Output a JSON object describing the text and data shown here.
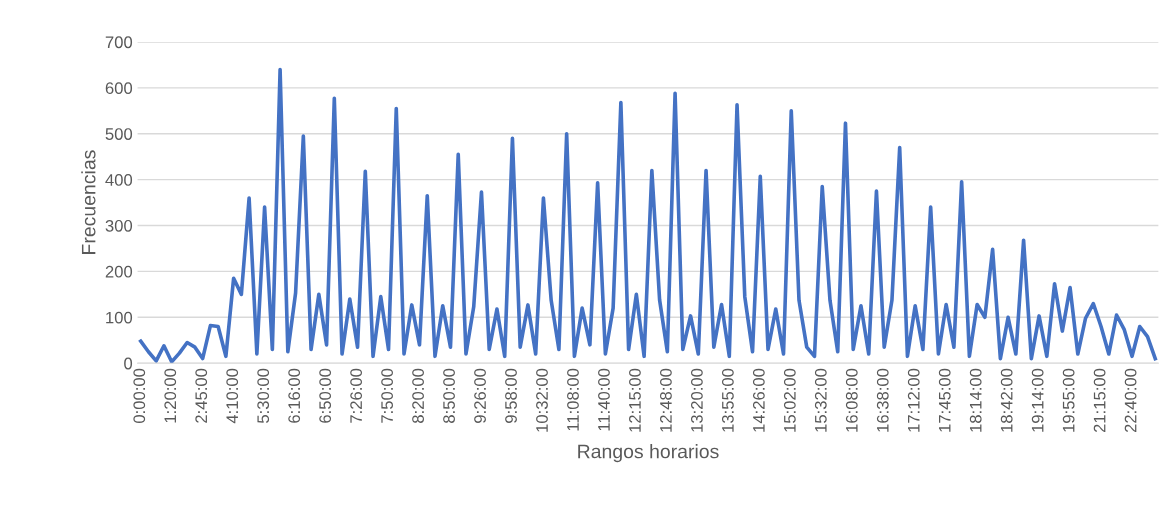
{
  "chart_data": {
    "type": "line",
    "xlabel": "Rangos horarios",
    "ylabel": "Frecuencias",
    "categories": [
      "0:00:00",
      null,
      null,
      null,
      "1:20:00",
      null,
      null,
      null,
      "2:45:00",
      null,
      null,
      null,
      "4:10:00",
      null,
      null,
      null,
      "5:30:00",
      null,
      null,
      null,
      "6:16:00",
      null,
      null,
      null,
      "6:50:00",
      null,
      null,
      null,
      "7:26:00",
      null,
      null,
      null,
      "7:50:00",
      null,
      null,
      null,
      "8:20:00",
      null,
      null,
      null,
      "8:50:00",
      null,
      null,
      null,
      "9:26:00",
      null,
      null,
      null,
      "9:58:00",
      null,
      null,
      null,
      "10:32:00",
      null,
      null,
      null,
      "11:08:00",
      null,
      null,
      null,
      "11:40:00",
      null,
      null,
      null,
      "12:15:00",
      null,
      null,
      null,
      "12:48:00",
      null,
      null,
      null,
      "13:20:00",
      null,
      null,
      null,
      "13:55:00",
      null,
      null,
      null,
      "14:26:00",
      null,
      null,
      null,
      "15:02:00",
      null,
      null,
      null,
      "15:32:00",
      null,
      null,
      null,
      "16:08:00",
      null,
      null,
      null,
      "16:38:00",
      null,
      null,
      null,
      "17:12:00",
      null,
      null,
      null,
      "17:45:00",
      null,
      null,
      null,
      "18:14:00",
      null,
      null,
      null,
      "18:42:00",
      null,
      null,
      null,
      "19:14:00",
      null,
      null,
      null,
      "19:55:00",
      null,
      null,
      null,
      "21:15:00",
      null,
      null,
      null,
      "22:40:00",
      null,
      null,
      null
    ],
    "series": [
      {
        "color": "#4472c4",
        "values": [
          48,
          25,
          5,
          38,
          3,
          22,
          45,
          35,
          10,
          82,
          80,
          15,
          185,
          150,
          360,
          20,
          340,
          30,
          640,
          25,
          153,
          495,
          30,
          150,
          40,
          577,
          20,
          140,
          35,
          418,
          15,
          145,
          30,
          555,
          20,
          127,
          40,
          365,
          15,
          125,
          35,
          455,
          20,
          123,
          373,
          30,
          118,
          15,
          490,
          35,
          127,
          20,
          360,
          137,
          30,
          500,
          15,
          120,
          40,
          393,
          20,
          120,
          568,
          30,
          150,
          15,
          420,
          138,
          25,
          588,
          30,
          103,
          20,
          420,
          35,
          128,
          15,
          563,
          145,
          25,
          407,
          30,
          118,
          20,
          550,
          137,
          35,
          15,
          385,
          137,
          25,
          523,
          30,
          125,
          20,
          375,
          35,
          137,
          470,
          15,
          125,
          30,
          340,
          20,
          128,
          35,
          395,
          15,
          128,
          100,
          248,
          10,
          100,
          20,
          268,
          10,
          103,
          15,
          173,
          70,
          165,
          20,
          98,
          130,
          80,
          20,
          105,
          73,
          15,
          80,
          58,
          10
        ]
      }
    ],
    "ylim": [
      0,
      700
    ],
    "yticks": [
      0,
      100,
      200,
      300,
      400,
      500,
      600,
      700
    ],
    "grid": "y",
    "legend": false
  }
}
